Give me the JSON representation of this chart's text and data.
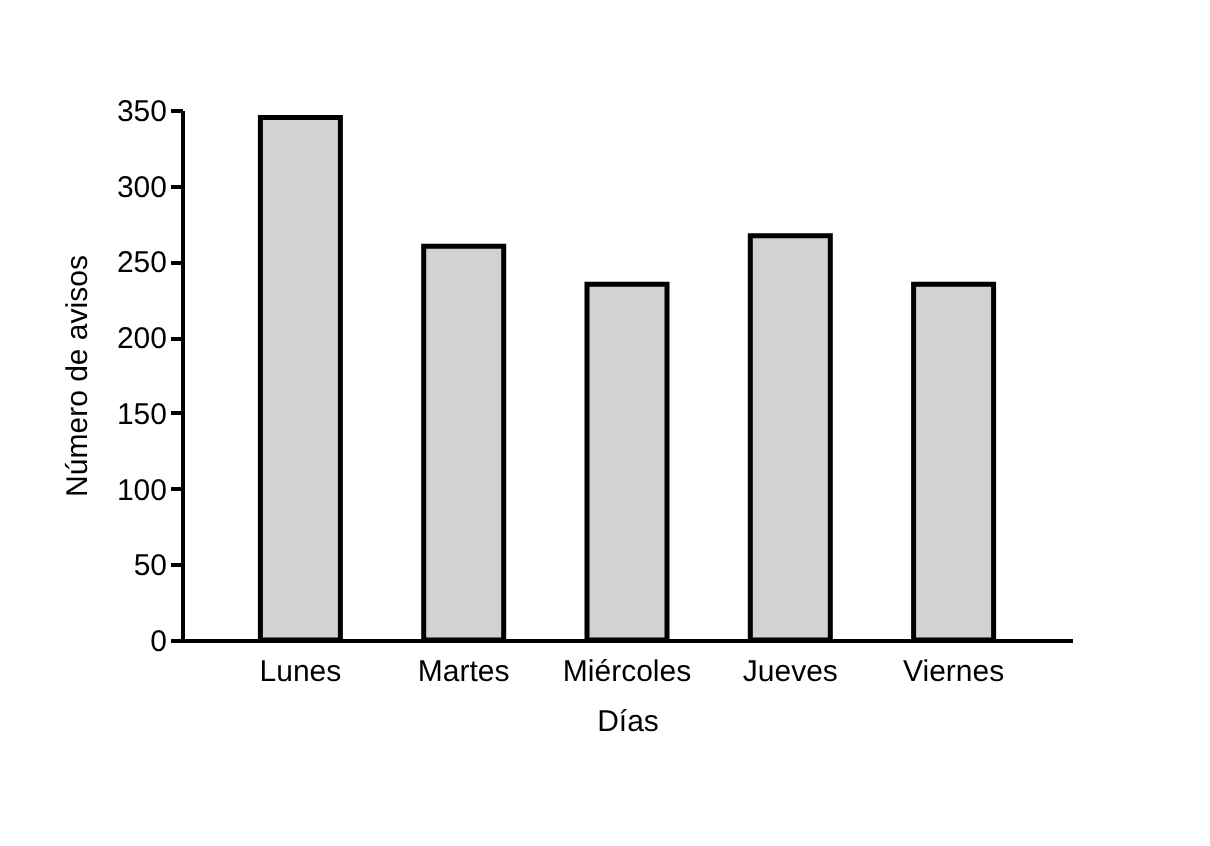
{
  "chart_data": {
    "type": "bar",
    "xlabel": "Días",
    "ylabel": "Número de avisos",
    "categories": [
      "Lunes",
      "Martes",
      "Miércoles",
      "Jueves",
      "Viernes"
    ],
    "values": [
      345,
      260,
      235,
      267,
      235
    ],
    "color": "#d1d2d4",
    "ylim": [
      0,
      350
    ],
    "yticks": [
      0,
      50,
      100,
      150,
      200,
      250,
      300,
      350
    ],
    "grid": false
  }
}
